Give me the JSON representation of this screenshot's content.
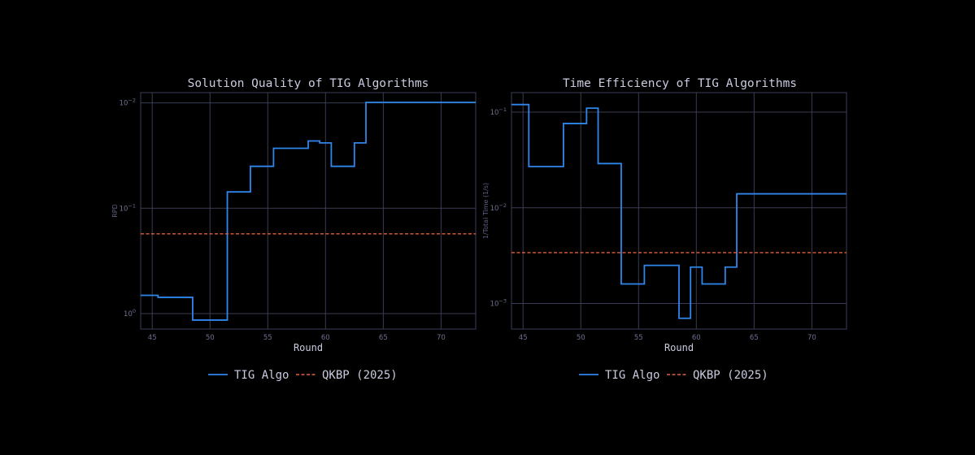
{
  "colors": {
    "background": "#000000",
    "grid": "#3a3c55",
    "text": "#c9cbe0",
    "tick_text": "#6d7090"
  },
  "chart_data": [
    {
      "type": "line",
      "step": true,
      "title": "Solution Quality of TIG Algorithms",
      "xlabel": "Round",
      "ylabel": "RPD",
      "xlim": [
        44,
        73
      ],
      "xticks": [
        45,
        50,
        55,
        60,
        65,
        70
      ],
      "y_scale": "log",
      "y_inverted": true,
      "ylim": [
        1.4,
        0.008
      ],
      "yticks": [
        {
          "value": 0.01,
          "label": "10",
          "exp": "−2"
        },
        {
          "value": 0.1,
          "label": "10",
          "exp": "−1"
        },
        {
          "value": 1,
          "label": "10",
          "exp": "0"
        }
      ],
      "grid": true,
      "legend_position": "bottom",
      "series": [
        {
          "name": "TIG Algo",
          "color": "#2f86ec",
          "style": "solid",
          "x": [
            44,
            45.5,
            48.5,
            51.5,
            53.5,
            55.5,
            58.5,
            59.5,
            60.5,
            62.5,
            63.5,
            73
          ],
          "y": [
            0.67,
            0.7,
            1.15,
            0.07,
            0.04,
            0.027,
            0.023,
            0.024,
            0.04,
            0.024,
            0.0099,
            0.0099
          ]
        },
        {
          "name": "QKBP (2025)",
          "color": "#e0603a",
          "style": "dashed",
          "x": [
            44,
            73
          ],
          "y": [
            0.175,
            0.175
          ]
        }
      ]
    },
    {
      "type": "line",
      "step": true,
      "title": "Time Efficiency of TIG Algorithms",
      "xlabel": "Round",
      "ylabel": "1/Total Time (1/s)",
      "xlim": [
        44,
        73
      ],
      "xticks": [
        45,
        50,
        55,
        60,
        65,
        70
      ],
      "y_scale": "log",
      "ylim": [
        0.00054,
        0.16
      ],
      "yticks": [
        {
          "value": 0.1,
          "label": "10",
          "exp": "−1"
        },
        {
          "value": 0.01,
          "label": "10",
          "exp": "−2"
        },
        {
          "value": 0.001,
          "label": "10",
          "exp": "−3"
        }
      ],
      "grid": true,
      "legend_position": "bottom",
      "series": [
        {
          "name": "TIG Algo",
          "color": "#2f86ec",
          "style": "solid",
          "x": [
            44,
            45.5,
            48.5,
            50.5,
            51.5,
            53.5,
            55.5,
            58.5,
            59.5,
            60.5,
            62.5,
            63.5,
            73
          ],
          "y": [
            0.12,
            0.027,
            0.076,
            0.11,
            0.029,
            0.0016,
            0.0025,
            0.0007,
            0.0024,
            0.0016,
            0.0024,
            0.014,
            0.014
          ]
        },
        {
          "name": "QKBP (2025)",
          "color": "#e0603a",
          "style": "dashed",
          "x": [
            44,
            73
          ],
          "y": [
            0.0034,
            0.0034
          ]
        }
      ]
    }
  ]
}
